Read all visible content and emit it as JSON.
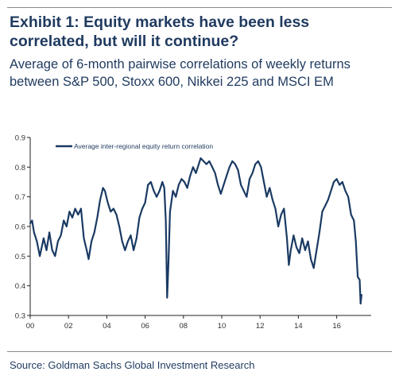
{
  "header": {
    "title": "Exhibit 1: Equity markets have been less correlated, but will it continue?",
    "subtitle": "Average of 6-month pairwise correlations of weekly returns between S&P 500, Stoxx 600, Nikkei 225 and MSCI EM"
  },
  "footer": {
    "source": "Source: Goldman Sachs Global Investment Research"
  },
  "colors": {
    "line": "#1a3a63",
    "text": "#1f3a5f"
  },
  "chart_data": {
    "type": "line",
    "title": "",
    "xlabel": "",
    "ylabel": "",
    "xlim": [
      2000.0,
      2017.8
    ],
    "ylim": [
      0.3,
      0.9
    ],
    "x_ticks": [
      "00",
      "02",
      "04",
      "06",
      "08",
      "10",
      "12",
      "14",
      "16"
    ],
    "y_ticks": [
      "0.3",
      "0.4",
      "0.5",
      "0.6",
      "0.7",
      "0.8",
      "0.9"
    ],
    "legend": {
      "position": "top-left"
    },
    "grid": false,
    "series": [
      {
        "name": "Average inter-regional equity return correlation",
        "points": [
          [
            2000.0,
            0.61
          ],
          [
            2000.1,
            0.62
          ],
          [
            2000.2,
            0.58
          ],
          [
            2000.35,
            0.55
          ],
          [
            2000.5,
            0.5
          ],
          [
            2000.7,
            0.56
          ],
          [
            2000.85,
            0.52
          ],
          [
            2001.0,
            0.58
          ],
          [
            2001.15,
            0.52
          ],
          [
            2001.3,
            0.5
          ],
          [
            2001.45,
            0.55
          ],
          [
            2001.6,
            0.57
          ],
          [
            2001.75,
            0.62
          ],
          [
            2001.9,
            0.6
          ],
          [
            2002.05,
            0.65
          ],
          [
            2002.2,
            0.63
          ],
          [
            2002.35,
            0.66
          ],
          [
            2002.5,
            0.64
          ],
          [
            2002.65,
            0.66
          ],
          [
            2002.8,
            0.56
          ],
          [
            2002.95,
            0.52
          ],
          [
            2003.05,
            0.49
          ],
          [
            2003.2,
            0.55
          ],
          [
            2003.35,
            0.58
          ],
          [
            2003.5,
            0.63
          ],
          [
            2003.65,
            0.69
          ],
          [
            2003.8,
            0.73
          ],
          [
            2003.9,
            0.72
          ],
          [
            2004.05,
            0.68
          ],
          [
            2004.2,
            0.65
          ],
          [
            2004.35,
            0.66
          ],
          [
            2004.5,
            0.64
          ],
          [
            2004.65,
            0.6
          ],
          [
            2004.8,
            0.55
          ],
          [
            2004.95,
            0.52
          ],
          [
            2005.1,
            0.55
          ],
          [
            2005.25,
            0.57
          ],
          [
            2005.4,
            0.52
          ],
          [
            2005.55,
            0.56
          ],
          [
            2005.7,
            0.63
          ],
          [
            2005.85,
            0.66
          ],
          [
            2006.0,
            0.68
          ],
          [
            2006.15,
            0.74
          ],
          [
            2006.3,
            0.75
          ],
          [
            2006.45,
            0.72
          ],
          [
            2006.6,
            0.7
          ],
          [
            2006.75,
            0.72
          ],
          [
            2006.9,
            0.75
          ],
          [
            2007.0,
            0.73
          ],
          [
            2007.08,
            0.62
          ],
          [
            2007.15,
            0.36
          ],
          [
            2007.22,
            0.48
          ],
          [
            2007.3,
            0.65
          ],
          [
            2007.45,
            0.72
          ],
          [
            2007.6,
            0.7
          ],
          [
            2007.75,
            0.74
          ],
          [
            2007.9,
            0.76
          ],
          [
            2008.05,
            0.75
          ],
          [
            2008.2,
            0.73
          ],
          [
            2008.35,
            0.77
          ],
          [
            2008.5,
            0.8
          ],
          [
            2008.65,
            0.78
          ],
          [
            2008.8,
            0.81
          ],
          [
            2008.9,
            0.83
          ],
          [
            2009.05,
            0.82
          ],
          [
            2009.2,
            0.81
          ],
          [
            2009.35,
            0.82
          ],
          [
            2009.5,
            0.8
          ],
          [
            2009.65,
            0.78
          ],
          [
            2009.8,
            0.74
          ],
          [
            2009.95,
            0.71
          ],
          [
            2010.1,
            0.74
          ],
          [
            2010.25,
            0.77
          ],
          [
            2010.4,
            0.8
          ],
          [
            2010.55,
            0.82
          ],
          [
            2010.7,
            0.81
          ],
          [
            2010.85,
            0.79
          ],
          [
            2011.0,
            0.74
          ],
          [
            2011.15,
            0.72
          ],
          [
            2011.3,
            0.7
          ],
          [
            2011.45,
            0.76
          ],
          [
            2011.6,
            0.78
          ],
          [
            2011.75,
            0.81
          ],
          [
            2011.9,
            0.82
          ],
          [
            2012.05,
            0.8
          ],
          [
            2012.2,
            0.75
          ],
          [
            2012.35,
            0.7
          ],
          [
            2012.5,
            0.73
          ],
          [
            2012.65,
            0.69
          ],
          [
            2012.8,
            0.66
          ],
          [
            2012.95,
            0.6
          ],
          [
            2013.1,
            0.64
          ],
          [
            2013.25,
            0.66
          ],
          [
            2013.4,
            0.56
          ],
          [
            2013.5,
            0.47
          ],
          [
            2013.6,
            0.52
          ],
          [
            2013.75,
            0.57
          ],
          [
            2013.9,
            0.53
          ],
          [
            2014.05,
            0.51
          ],
          [
            2014.2,
            0.56
          ],
          [
            2014.35,
            0.52
          ],
          [
            2014.5,
            0.55
          ],
          [
            2014.65,
            0.49
          ],
          [
            2014.8,
            0.46
          ],
          [
            2014.95,
            0.52
          ],
          [
            2015.1,
            0.58
          ],
          [
            2015.25,
            0.65
          ],
          [
            2015.4,
            0.67
          ],
          [
            2015.55,
            0.69
          ],
          [
            2015.7,
            0.72
          ],
          [
            2015.85,
            0.75
          ],
          [
            2016.0,
            0.76
          ],
          [
            2016.15,
            0.74
          ],
          [
            2016.3,
            0.75
          ],
          [
            2016.45,
            0.72
          ],
          [
            2016.6,
            0.7
          ],
          [
            2016.75,
            0.64
          ],
          [
            2016.9,
            0.62
          ],
          [
            2017.0,
            0.55
          ],
          [
            2017.1,
            0.43
          ],
          [
            2017.2,
            0.42
          ],
          [
            2017.25,
            0.34
          ],
          [
            2017.3,
            0.37
          ]
        ]
      }
    ]
  }
}
